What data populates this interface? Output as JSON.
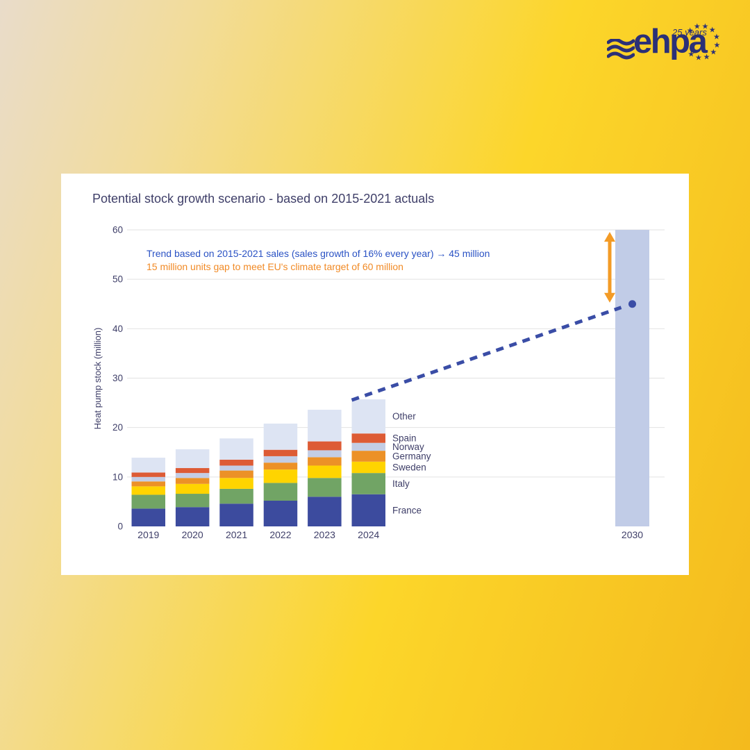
{
  "logo": {
    "brand": "ehpa",
    "tagline": "25 years",
    "color": "#2b3077",
    "star_count": 10
  },
  "chart_data": {
    "type": "bar",
    "stacked": true,
    "title": "Potential stock growth scenario - based on 2015-2021 actuals",
    "ylabel": "Heat pump stock (million)",
    "ylim": [
      0,
      60
    ],
    "yticks": [
      0,
      10,
      20,
      30,
      40,
      50,
      60
    ],
    "grid": true,
    "legend_position": "right-of-last-bar",
    "axis_text_color": "#3e3e68",
    "grid_color": "#e2e2e2",
    "categories": [
      "2019",
      "2020",
      "2021",
      "2022",
      "2023",
      "2024"
    ],
    "series": [
      {
        "name": "France",
        "color": "#3c4b9e",
        "values": [
          3.6,
          3.9,
          4.6,
          5.2,
          6.0,
          6.5
        ]
      },
      {
        "name": "Italy",
        "color": "#71a465",
        "values": [
          2.8,
          2.7,
          3.0,
          3.6,
          3.8,
          4.3
        ]
      },
      {
        "name": "Sweden",
        "color": "#ffd400",
        "values": [
          1.7,
          2.0,
          2.2,
          2.7,
          2.5,
          2.3
        ]
      },
      {
        "name": "Germany",
        "color": "#ec9127",
        "values": [
          1.0,
          1.2,
          1.5,
          1.4,
          1.7,
          2.2
        ]
      },
      {
        "name": "Norway",
        "color": "#c3cde5",
        "values": [
          0.9,
          1.0,
          1.0,
          1.3,
          1.4,
          1.6
        ]
      },
      {
        "name": "Spain",
        "color": "#dd5b35",
        "values": [
          0.9,
          1.0,
          1.2,
          1.3,
          1.8,
          1.9
        ]
      },
      {
        "name": "Other",
        "color": "#dde4f3",
        "values": [
          3.0,
          3.8,
          4.3,
          5.3,
          6.4,
          6.9
        ]
      }
    ],
    "totals": [
      13.9,
      15.6,
      17.8,
      20.8,
      23.6,
      25.7
    ],
    "target_bar": {
      "category": "2030",
      "value": 60,
      "color": "#c1cce7"
    },
    "trend": {
      "label": "Trend based on 2015-2021 sales (sales growth of 16% every year) → 45 million",
      "end_value": 45,
      "line_color": "#3a4da6",
      "text_color": "#2a52c4"
    },
    "gap_arrow": {
      "label": "15 million units gap to meet EU's climate target of 60 million",
      "from": 45,
      "to": 60,
      "color": "#f39b26",
      "text_color": "#f18a25"
    }
  }
}
